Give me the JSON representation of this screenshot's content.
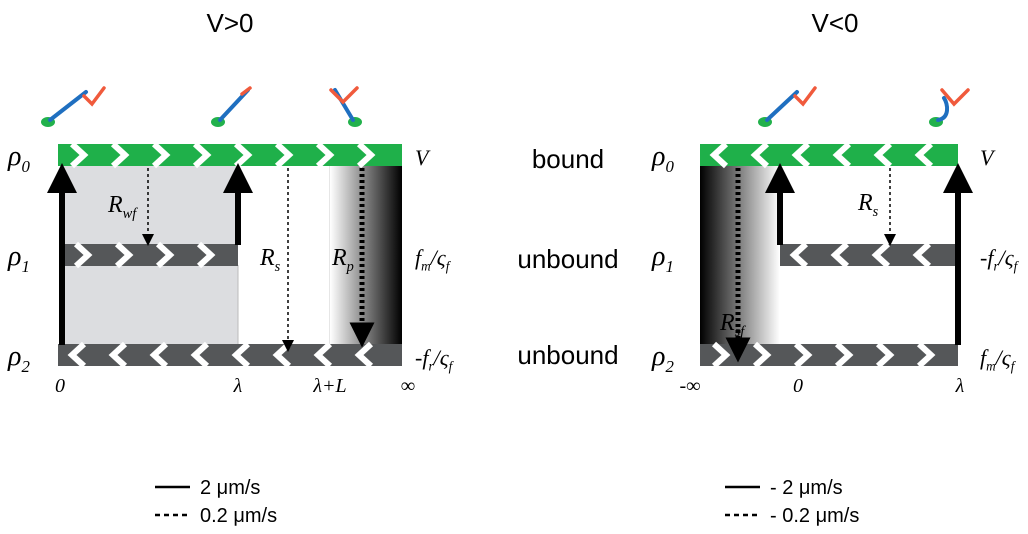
{
  "panels": [
    {
      "title": "V>0",
      "row_labels": [
        [
          [
            "ρ",
            "0"
          ]
        ],
        [
          [
            "ρ",
            "1"
          ]
        ],
        [
          [
            "ρ",
            "2"
          ]
        ]
      ],
      "end_labels": [
        [
          [
            "V"
          ]
        ],
        [
          [
            "f",
            "m"
          ],
          [
            "/ς",
            "f"
          ]
        ],
        [
          [
            "-f",
            "r"
          ],
          [
            "/ς",
            "f"
          ]
        ]
      ],
      "rate_labels": [
        [
          [
            "R",
            "wf"
          ]
        ],
        [
          [
            "R",
            "s"
          ]
        ],
        [
          [
            "R",
            "p"
          ]
        ]
      ],
      "axis_labels": [
        "0",
        "λ",
        "λ+L",
        "∞"
      ],
      "legend": [
        "2 μm/s",
        "0.2 μm/s"
      ]
    },
    {
      "title": "V<0",
      "row_labels": [
        [
          [
            "ρ",
            "0"
          ]
        ],
        [
          [
            "ρ",
            "1"
          ]
        ],
        [
          [
            "ρ",
            "2"
          ]
        ]
      ],
      "end_labels": [
        [
          [
            "V"
          ]
        ],
        [
          [
            "-f",
            "r"
          ],
          [
            "/ς",
            "f"
          ]
        ],
        [
          [
            "f",
            "m"
          ],
          [
            "/ς",
            "f"
          ]
        ]
      ],
      "rate_labels": [
        [
          [
            "R",
            "s"
          ]
        ],
        [
          [
            "R",
            "sf"
          ]
        ]
      ],
      "axis_labels": [
        "-∞",
        "0",
        "λ"
      ],
      "legend": [
        "- 2 μm/s",
        "- 0.2 μm/s"
      ]
    }
  ],
  "states": [
    "bound",
    "unbound",
    "unbound"
  ]
}
